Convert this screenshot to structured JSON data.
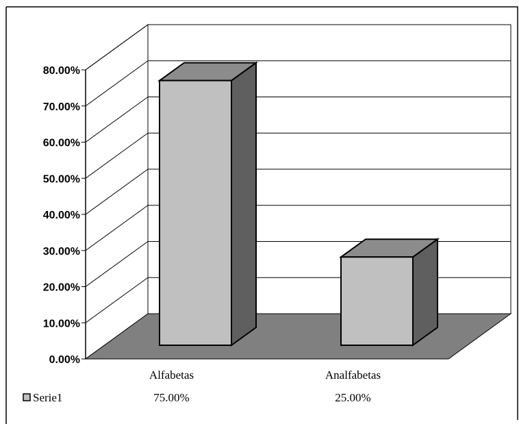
{
  "chart_data": {
    "type": "bar",
    "title": "",
    "xlabel": "",
    "ylabel": "",
    "categories": [
      "Alfabetas",
      "Analfabetas"
    ],
    "series": [
      {
        "name": "Serie1",
        "values": [
          0.75,
          0.25
        ],
        "labels": [
          "75.00%",
          "25.00%"
        ]
      }
    ],
    "ylim": [
      0,
      0.8
    ],
    "y_ticks": [
      0,
      0.1,
      0.2,
      0.3,
      0.4,
      0.5,
      0.6,
      0.7,
      0.8
    ],
    "y_tick_labels": [
      "0.00%",
      "10.00%",
      "20.00%",
      "30.00%",
      "40.00%",
      "50.00%",
      "60.00%",
      "70.00%",
      "80.00%"
    ],
    "grid": true,
    "style": "3d-column",
    "legend_position": "bottom-left",
    "data_table": true,
    "colors": {
      "bar_front": "#c0c0c0",
      "bar_top": "#8c8c8c",
      "bar_side": "#5f5f5f",
      "floor": "#808080",
      "walls": "#ffffff",
      "outline": "#000000"
    }
  }
}
